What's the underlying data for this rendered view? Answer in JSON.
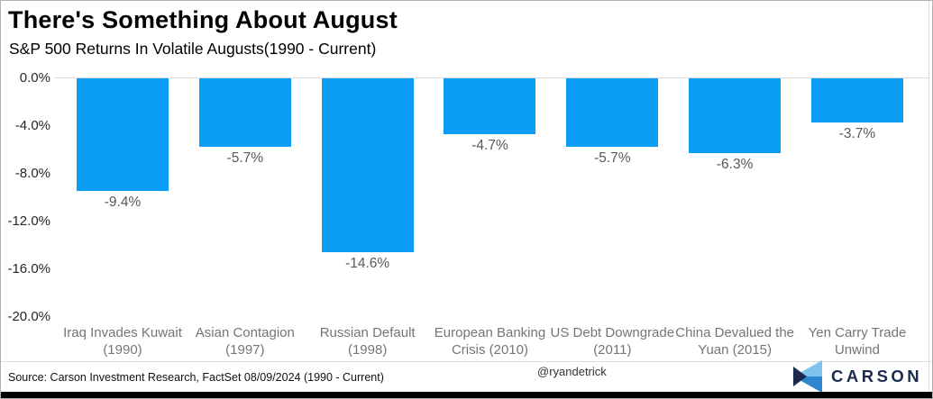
{
  "header": {
    "title": "There's Something About August",
    "subtitle": "S&P 500 Returns In Volatile Augusts(1990 - Current)"
  },
  "chart_data": {
    "type": "bar",
    "title": "There's Something About August",
    "subtitle": "S&P 500 Returns In Volatile Augusts(1990 - Current)",
    "categories": [
      "Iraq Invades Kuwait (1990)",
      "Asian Contagion (1997)",
      "Russian Default (1998)",
      "European Banking Crisis (2010)",
      "US Debt Downgrade (2011)",
      "China Devalued the Yuan (2015)",
      "Yen Carry Trade Unwind"
    ],
    "values": [
      -9.4,
      -5.7,
      -14.6,
      -4.7,
      -5.7,
      -6.3,
      -3.7
    ],
    "data_labels": [
      "-9.4%",
      "-5.7%",
      "-14.6%",
      "-4.7%",
      "-5.7%",
      "-6.3%",
      "-3.7%"
    ],
    "xlabel": "",
    "ylabel": "",
    "ylim": [
      -20,
      0
    ],
    "yticks": [
      0,
      -4,
      -8,
      -12,
      -16,
      -20
    ],
    "ytick_labels": [
      "0.0%",
      "-4.0%",
      "-8.0%",
      "-12.0%",
      "-16.0%",
      "-20.0%"
    ],
    "grid": "zero-line-only",
    "legend": "none",
    "bar_color": "#0a9df5"
  },
  "footer": {
    "source": "Source: Carson Investment Research, FactSet 08/09/2024 (1990 - Current)",
    "handle": "@ryandetrick",
    "brand": "CARSON"
  },
  "colors": {
    "bar": "#0a9df5",
    "zero_line": "#d9d9d9",
    "ytick_text": "#262626",
    "bar_label_text": "#595959",
    "category_text": "#757575",
    "logo_navy": "#1b2b4d",
    "logo_light_blue": "#7ec3ec",
    "logo_mid_blue": "#2e86cf",
    "bottom_bar": "#000000"
  },
  "icons": {
    "carson_logo_icon": "carson-chevron-mark"
  }
}
